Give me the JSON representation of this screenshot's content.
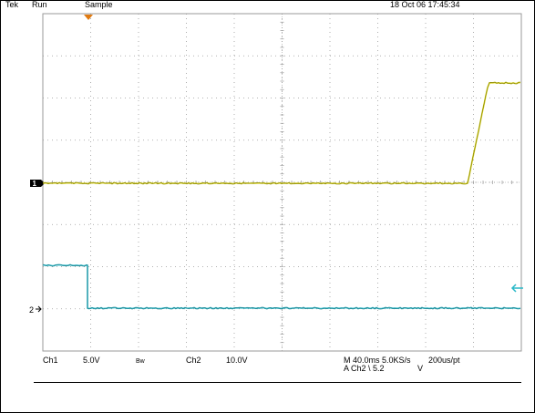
{
  "header": {
    "brand": "Tek",
    "acquisition_state": "Run",
    "acquisition_mode": "Sample",
    "timestamp": "18 Oct 06 17:45:34"
  },
  "markers": {
    "ch1": "1",
    "ch2": "2"
  },
  "readout": {
    "ch1_label": "Ch1",
    "ch1_scale": "5.0V",
    "bandwidth_limit": "Bw",
    "ch2_label": "Ch2",
    "ch2_scale": "10.0V",
    "timebase": "M 40.0ms 5.0KS/s",
    "record": "200us/pt",
    "trigger": "A  Ch2  \\  5.2",
    "trigger_unit": "V"
  },
  "colors": {
    "ch1": "#d8d21a",
    "ch2": "#2ab8c8",
    "trigger_marker": "#e07a10",
    "grid": "#9a9a9a"
  },
  "icons": [
    "trigger-position-icon",
    "ch1-ground-marker-icon",
    "ch2-ground-marker-icon",
    "trigger-level-arrow-icon"
  ]
}
